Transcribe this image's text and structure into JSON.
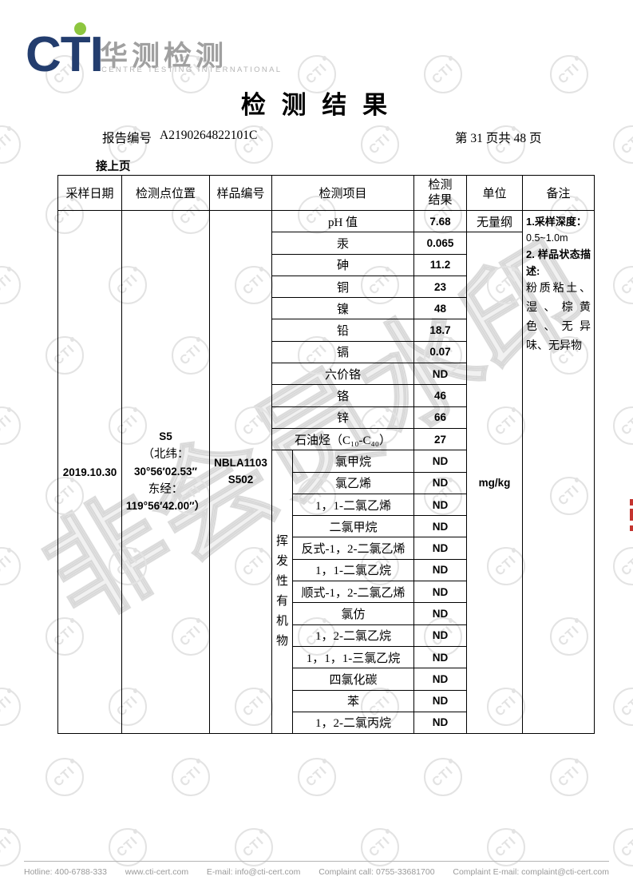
{
  "logo": {
    "cti": "CTI",
    "cn_name": "华测检测",
    "en_name": "CENTRE TESTING INTERNATIONAL",
    "brand_navy": "#233d6e",
    "dot_green": "#8dc63f"
  },
  "header": {
    "title": "检 测 结 果",
    "report_no_label": "报告编号",
    "report_no": "A2190264822101C",
    "page_info": "第 31 页共 48 页",
    "continued": "接上页"
  },
  "table": {
    "headers": {
      "sample_date": "采样日期",
      "location": "检测点位置",
      "sample_no": "样品编号",
      "item": "检测项目",
      "result": "检测结果",
      "unit": "单位",
      "remark": "备注"
    },
    "sample_date": "2019.10.30",
    "location_lines": [
      "S5",
      "（北纬：",
      "30°56′02.53″",
      "东经：",
      "119°56′42.00″）"
    ],
    "sample_no_lines": [
      "NBLA1103",
      "S502"
    ],
    "voc_group_label": "挥发性有机物",
    "unit_first": "无量纲",
    "unit_rest": "mg/kg",
    "rows": [
      {
        "item": "pH 值",
        "result": "7.68"
      },
      {
        "item": "汞",
        "result": "0.065"
      },
      {
        "item": "砷",
        "result": "11.2"
      },
      {
        "item": "铜",
        "result": "23"
      },
      {
        "item": "镍",
        "result": "48"
      },
      {
        "item": "铅",
        "result": "18.7"
      },
      {
        "item": "镉",
        "result": "0.07"
      },
      {
        "item": "六价铬",
        "result": "ND"
      },
      {
        "item": "铬",
        "result": "46"
      },
      {
        "item": "锌",
        "result": "66"
      },
      {
        "item": "石油烃（C₁₀-C₄₀）",
        "result": "27"
      },
      {
        "item": "氯甲烷",
        "result": "ND"
      },
      {
        "item": "氯乙烯",
        "result": "ND"
      },
      {
        "item": "1，1-二氯乙烯",
        "result": "ND"
      },
      {
        "item": "二氯甲烷",
        "result": "ND"
      },
      {
        "item": "反式-1，2-二氯乙烯",
        "result": "ND"
      },
      {
        "item": "1，1-二氯乙烷",
        "result": "ND"
      },
      {
        "item": "顺式-1，2-二氯乙烯",
        "result": "ND"
      },
      {
        "item": "氯仿",
        "result": "ND"
      },
      {
        "item": "1，2-二氯乙烷",
        "result": "ND"
      },
      {
        "item": "1，1，1-三氯乙烷",
        "result": "ND"
      },
      {
        "item": "四氯化碳",
        "result": "ND"
      },
      {
        "item": "苯",
        "result": "ND"
      },
      {
        "item": "1，2-二氯丙烷",
        "result": "ND"
      }
    ],
    "remark": {
      "t1": "1.采样深度：",
      "b1": "0.5~1.0m",
      "t2": "2. 样品状态描述:",
      "b2": "粉质粘土、湿、棕黄色、无异味、无异物"
    }
  },
  "watermark": {
    "diagonal_text": "非会员水印",
    "stamp_text": "CTI"
  },
  "footer": {
    "items": [
      "Hotline: 400-6788-333",
      "www.cti-cert.com",
      "E-mail: info@cti-cert.com",
      "Complaint call: 0755-33681700",
      "Complaint E-mail: complaint@cti-cert.com"
    ]
  }
}
